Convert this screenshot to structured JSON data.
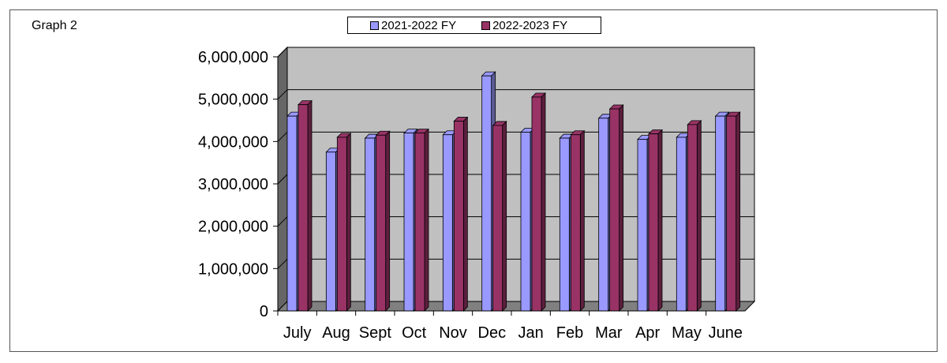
{
  "chart_data": {
    "type": "bar",
    "title": "Graph 2",
    "categories": [
      "July",
      "Aug",
      "Sept",
      "Oct",
      "Nov",
      "Dec",
      "Jan",
      "Feb",
      "Mar",
      "Apr",
      "May",
      "June"
    ],
    "series": [
      {
        "name": "2021-2022 FY",
        "color": "#9999ff",
        "values": [
          4600000,
          3750000,
          4080000,
          4200000,
          4160000,
          5550000,
          4220000,
          4080000,
          4550000,
          4050000,
          4100000,
          4600000
        ]
      },
      {
        "name": "2022-2023 FY",
        "color": "#993366",
        "values": [
          4870000,
          4100000,
          4150000,
          4200000,
          4480000,
          4380000,
          5050000,
          4160000,
          4770000,
          4180000,
          4400000,
          4600000
        ]
      }
    ],
    "y_ticks": [
      "0",
      "1,000,000",
      "2,000,000",
      "3,000,000",
      "4,000,000",
      "5,000,000",
      "6,000,000"
    ],
    "ylim": [
      0,
      6000000
    ],
    "grid": true,
    "legend_position": "top-center",
    "wall_color": "#c0c0c0",
    "floor_color": "#808080"
  }
}
